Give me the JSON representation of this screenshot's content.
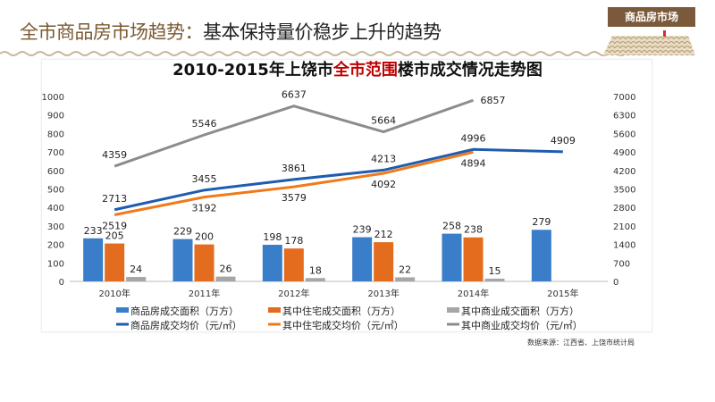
{
  "header": {
    "title_part1": "全市商品房市场趋势：",
    "title_part2": "基本保持量价稳步上升的趋势",
    "badge": "商品房市场"
  },
  "colors": {
    "blue": "#3a7dc9",
    "orange": "#e46c1e",
    "gray": "#a6a6a6",
    "blue_line": "#1f5bb0",
    "orange_line": "#f07a1a",
    "gray_line": "#8c8c8c",
    "accent": "#7b5a3b"
  },
  "chart_data": {
    "type": "bar+line",
    "title_part1": "2010-2015年上饶市",
    "title_highlight": "全市范围",
    "title_part2": "楼市成交情况走势图",
    "categories": [
      "2010年",
      "2011年",
      "2012年",
      "2013年",
      "2014年",
      "2015年"
    ],
    "y_left": {
      "range": [
        0,
        1000
      ],
      "ticks": [
        "0",
        "100",
        "200",
        "300",
        "400",
        "500",
        "600",
        "700",
        "800",
        "900",
        "1000"
      ]
    },
    "y_right": {
      "range": [
        0,
        7000
      ],
      "ticks": [
        "0",
        "700",
        "1400",
        "2100",
        "2800",
        "3500",
        "4200",
        "4900",
        "5600",
        "6300",
        "7000"
      ]
    },
    "bars": [
      {
        "name": "商品房成交面积（万方）",
        "color": "#3a7dc9",
        "values": [
          233,
          229,
          198,
          239,
          258,
          279
        ]
      },
      {
        "name": "其中住宅成交面积（万方）",
        "color": "#e46c1e",
        "values": [
          205,
          200,
          178,
          212,
          238,
          null
        ]
      },
      {
        "name": "其中商业成交面积（万方）",
        "color": "#a6a6a6",
        "values": [
          24,
          26,
          18,
          22,
          15,
          null
        ]
      }
    ],
    "lines": [
      {
        "name": "商品房成交均价（元/㎡）",
        "color": "#1f5bb0",
        "values": [
          2713,
          3455,
          3861,
          4213,
          4996,
          4909
        ]
      },
      {
        "name": "其中住宅成交均价（元/㎡）",
        "color": "#f07a1a",
        "values": [
          2519,
          3192,
          3579,
          4092,
          4894,
          null
        ]
      },
      {
        "name": "其中商业成交均价（元/㎡）",
        "color": "#8c8c8c",
        "values": [
          4359,
          5546,
          6637,
          5664,
          6857,
          null
        ]
      }
    ],
    "grid": false
  },
  "source": "数据来源：江西省、上饶市统计局"
}
